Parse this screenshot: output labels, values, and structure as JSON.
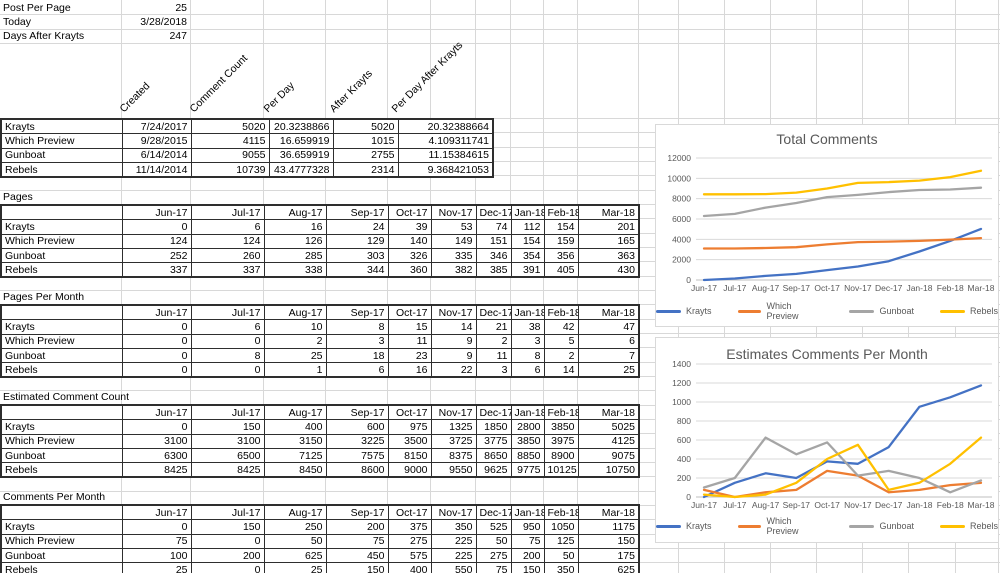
{
  "info_panel": {
    "rows": [
      {
        "label": "Post Per Page",
        "value": "25"
      },
      {
        "label": "Today",
        "value": "3/28/2018"
      },
      {
        "label": "Days After Krayts",
        "value": "247"
      }
    ]
  },
  "stats_table": {
    "column_headers": [
      "Created",
      "Comment Count",
      "Per Day",
      "After Krayts",
      "Per Day After Krayts"
    ],
    "rows": [
      {
        "label": "Krayts",
        "values": [
          "7/24/2017",
          "5020",
          "20.3238866",
          "5020",
          "20.32388664"
        ],
        "after_krayts_flag": false
      },
      {
        "label": "Which Preview",
        "values": [
          "9/28/2015",
          "4115",
          "16.659919",
          "1015",
          "4.109311741"
        ],
        "after_krayts_flag": true
      },
      {
        "label": "Gunboat",
        "values": [
          "6/14/2014",
          "9055",
          "36.659919",
          "2755",
          "11.15384615"
        ],
        "after_krayts_flag": true
      },
      {
        "label": "Rebels",
        "values": [
          "11/14/2014",
          "10739",
          "43.4777328",
          "2314",
          "9.368421053"
        ],
        "after_krayts_flag": true
      }
    ]
  },
  "months": [
    "Jun-17",
    "Jul-17",
    "Aug-17",
    "Sep-17",
    "Oct-17",
    "Nov-17",
    "Dec-17",
    "Jan-18",
    "Feb-18",
    "Mar-18"
  ],
  "month_tables": [
    {
      "title": "Pages",
      "rows": [
        {
          "label": "Krayts",
          "values": [
            0,
            6,
            16,
            24,
            39,
            53,
            74,
            112,
            154,
            201
          ]
        },
        {
          "label": "Which Preview",
          "values": [
            124,
            124,
            126,
            129,
            140,
            149,
            151,
            154,
            159,
            165
          ]
        },
        {
          "label": "Gunboat",
          "values": [
            252,
            260,
            285,
            303,
            326,
            335,
            346,
            354,
            356,
            363
          ]
        },
        {
          "label": "Rebels",
          "values": [
            337,
            337,
            338,
            344,
            360,
            382,
            385,
            391,
            405,
            430
          ]
        }
      ]
    },
    {
      "title": "Pages Per Month",
      "rows": [
        {
          "label": "Krayts",
          "values": [
            0,
            6,
            10,
            8,
            15,
            14,
            21,
            38,
            42,
            47
          ]
        },
        {
          "label": "Which Preview",
          "values": [
            0,
            0,
            2,
            3,
            11,
            9,
            2,
            3,
            5,
            6
          ]
        },
        {
          "label": "Gunboat",
          "values": [
            0,
            8,
            25,
            18,
            23,
            9,
            11,
            8,
            2,
            7
          ]
        },
        {
          "label": "Rebels",
          "values": [
            0,
            0,
            1,
            6,
            16,
            22,
            3,
            6,
            14,
            25
          ]
        }
      ]
    },
    {
      "title": "Estimated Comment Count",
      "rows": [
        {
          "label": "Krayts",
          "values": [
            0,
            150,
            400,
            600,
            975,
            1325,
            1850,
            2800,
            3850,
            5025
          ]
        },
        {
          "label": "Which Preview",
          "values": [
            3100,
            3100,
            3150,
            3225,
            3500,
            3725,
            3775,
            3850,
            3975,
            4125
          ]
        },
        {
          "label": "Gunboat",
          "values": [
            6300,
            6500,
            7125,
            7575,
            8150,
            8375,
            8650,
            8850,
            8900,
            9075
          ]
        },
        {
          "label": "Rebels",
          "values": [
            8425,
            8425,
            8450,
            8600,
            9000,
            9550,
            9625,
            9775,
            10125,
            10750
          ]
        }
      ]
    },
    {
      "title": "Comments Per Month",
      "rows": [
        {
          "label": "Krayts",
          "values": [
            0,
            150,
            250,
            200,
            375,
            350,
            525,
            950,
            1050,
            1175
          ]
        },
        {
          "label": "Which Preview",
          "values": [
            75,
            0,
            50,
            75,
            275,
            225,
            50,
            75,
            125,
            150
          ]
        },
        {
          "label": "Gunboat",
          "values": [
            100,
            200,
            625,
            450,
            575,
            225,
            275,
            200,
            50,
            175
          ]
        },
        {
          "label": "Rebels",
          "values": [
            25,
            0,
            25,
            150,
            400,
            550,
            75,
            150,
            350,
            625
          ]
        }
      ]
    }
  ],
  "colors": {
    "krayts": "#4472C4",
    "which_preview": "#ED7D31",
    "gunboat": "#A5A5A5",
    "rebels": "#FFC000",
    "chart_text": "#595959",
    "chart_gridline": "#D9D9D9",
    "sheet_gridline": "#D8D8D8",
    "error_flag_green": "#2f9e3e"
  },
  "chart_data": [
    {
      "type": "line",
      "title": "Total Comments",
      "categories": [
        "Jun-17",
        "Jul-17",
        "Aug-17",
        "Sep-17",
        "Oct-17",
        "Nov-17",
        "Dec-17",
        "Jan-18",
        "Feb-18",
        "Mar-18"
      ],
      "series": [
        {
          "name": "Krayts",
          "color": "#4472C4",
          "values": [
            0,
            150,
            400,
            600,
            975,
            1325,
            1850,
            2800,
            3850,
            5025
          ]
        },
        {
          "name": "Which Preview",
          "color": "#ED7D31",
          "values": [
            3100,
            3100,
            3150,
            3225,
            3500,
            3725,
            3775,
            3850,
            3975,
            4125
          ]
        },
        {
          "name": "Gunboat",
          "color": "#A5A5A5",
          "values": [
            6300,
            6500,
            7125,
            7575,
            8150,
            8375,
            8650,
            8850,
            8900,
            9075
          ]
        },
        {
          "name": "Rebels",
          "color": "#FFC000",
          "values": [
            8425,
            8425,
            8450,
            8600,
            9000,
            9550,
            9625,
            9775,
            10125,
            10750
          ]
        }
      ],
      "ylim": [
        0,
        12000
      ],
      "y_ticks": [
        0,
        2000,
        4000,
        6000,
        8000,
        10000,
        12000
      ],
      "grid": true,
      "legend_position": "bottom"
    },
    {
      "type": "line",
      "title": "Estimates Comments Per Month",
      "categories": [
        "Jun-17",
        "Jul-17",
        "Aug-17",
        "Sep-17",
        "Oct-17",
        "Nov-17",
        "Dec-17",
        "Jan-18",
        "Feb-18",
        "Mar-18"
      ],
      "series": [
        {
          "name": "Krayts",
          "color": "#4472C4",
          "values": [
            0,
            150,
            250,
            200,
            375,
            350,
            525,
            950,
            1050,
            1175
          ]
        },
        {
          "name": "Which Preview",
          "color": "#ED7D31",
          "values": [
            75,
            0,
            50,
            75,
            275,
            225,
            50,
            75,
            125,
            150
          ]
        },
        {
          "name": "Gunboat",
          "color": "#A5A5A5",
          "values": [
            100,
            200,
            625,
            450,
            575,
            225,
            275,
            200,
            50,
            175
          ]
        },
        {
          "name": "Rebels",
          "color": "#FFC000",
          "values": [
            25,
            0,
            25,
            150,
            400,
            550,
            75,
            150,
            350,
            625
          ]
        }
      ],
      "ylim": [
        0,
        1400
      ],
      "y_ticks": [
        0,
        200,
        400,
        600,
        800,
        1000,
        1200,
        1400
      ],
      "grid": true,
      "legend_position": "bottom"
    }
  ]
}
